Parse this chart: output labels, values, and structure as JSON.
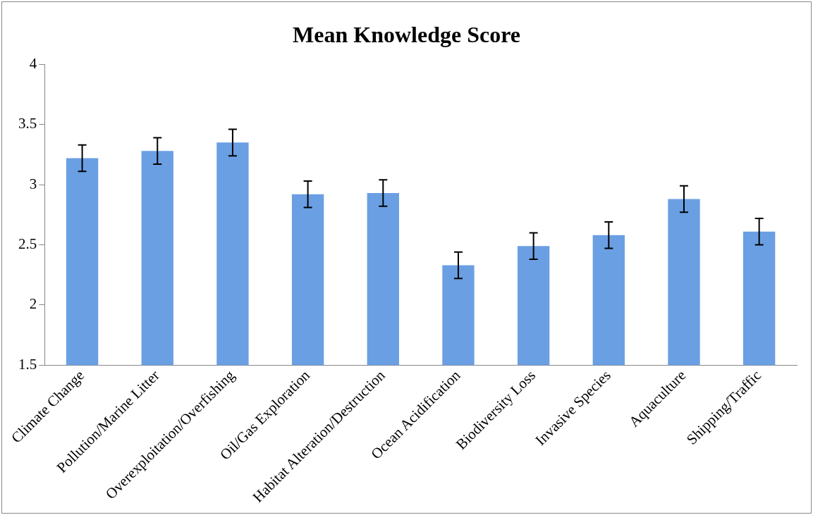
{
  "chart_data": {
    "type": "bar",
    "title": "Mean Knowledge Score",
    "categories": [
      "Climate Change",
      "Pollution/Marine Litter",
      "Overexploitation/Overfishing",
      "Oil/Gas Exploration",
      "Habitat Alteration/Destruction",
      "Ocean Acidification",
      "Biodiversity Loss",
      "Invasive Species",
      "Aquaculture",
      "Shipping/Traffic"
    ],
    "values": [
      3.22,
      3.28,
      3.35,
      2.92,
      2.93,
      2.33,
      2.49,
      2.58,
      2.88,
      2.61
    ],
    "errors": [
      0.11,
      0.11,
      0.11,
      0.11,
      0.11,
      0.11,
      0.11,
      0.11,
      0.11,
      0.11
    ],
    "color": "#6a9fe3",
    "ylim": [
      1.5,
      4
    ],
    "yticks": [
      1.5,
      2,
      2.5,
      3,
      3.5,
      4
    ],
    "grid": false,
    "legend": false
  }
}
